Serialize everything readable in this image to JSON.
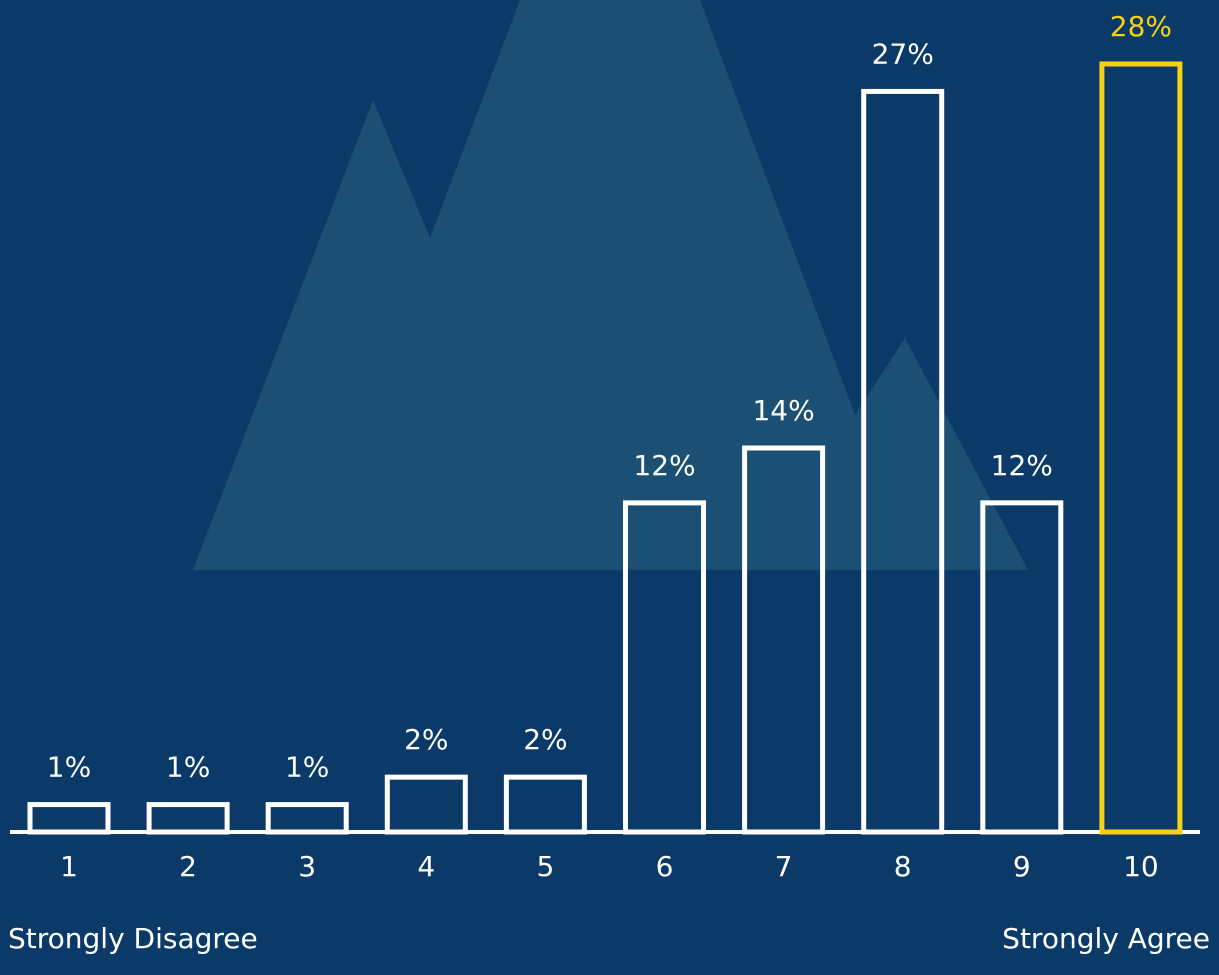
{
  "chart_data": {
    "type": "bar",
    "categories": [
      "1",
      "2",
      "3",
      "4",
      "5",
      "6",
      "7",
      "8",
      "9",
      "10"
    ],
    "values": [
      1,
      1,
      1,
      2,
      2,
      12,
      14,
      27,
      12,
      28
    ],
    "value_labels": [
      "1%",
      "1%",
      "1%",
      "2%",
      "2%",
      "12%",
      "14%",
      "27%",
      "12%",
      "28%"
    ],
    "colors": [
      "#ffffff",
      "#ffffff",
      "#ffffff",
      "#ffffff",
      "#ffffff",
      "#ffffff",
      "#ffffff",
      "#ffffff",
      "#ffffff",
      "#f7d117"
    ],
    "x_label_left": "Strongly Disagree",
    "x_label_right": "Strongly Agree"
  }
}
